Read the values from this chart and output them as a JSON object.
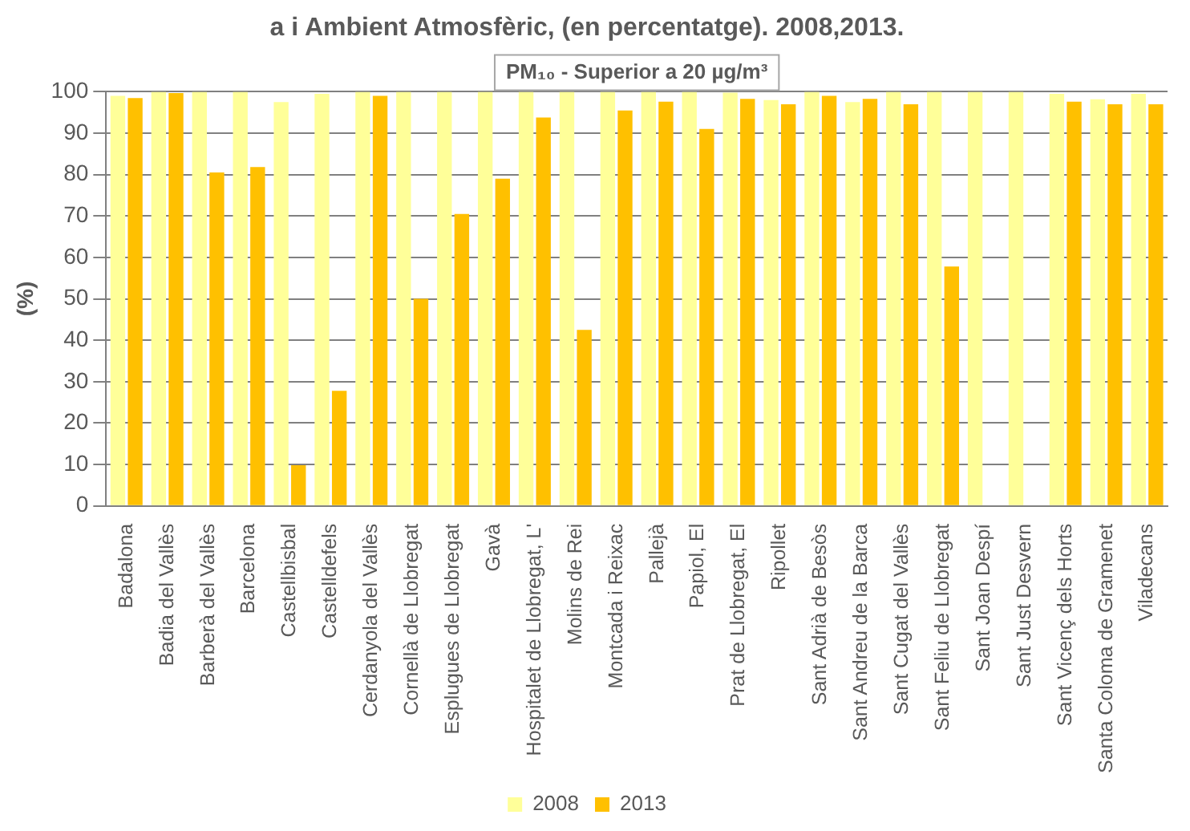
{
  "chart_data": {
    "type": "bar",
    "title": "a i Ambient Atmosfèric, (en percentatge). 2008,2013.",
    "subtitle": "PM₁₀ - Superior a 20 µg/m³",
    "ylabel": "(%)",
    "categories": [
      "Badalona",
      "Badia del Vallès",
      "Barberà del Vallès",
      "Barcelona",
      "Castellbisbal",
      "Castelldefels",
      "Cerdanyola del Vallès",
      "Cornellà de Llobregat",
      "Esplugues de Llobregat",
      "Gavà",
      "Hospitalet de Llobregat, L'",
      "Molins de Rei",
      "Montcada i Reixac",
      "Pallejà",
      "Papiol, El",
      "Prat de Llobregat, El",
      "Ripollet",
      "Sant Adrià de Besòs",
      "Sant Andreu de la Barca",
      "Sant Cugat del Vallès",
      "Sant Feliu de Llobregat",
      "Sant Joan Despí",
      "Sant Just Desvern",
      "Sant Vicenç dels Horts",
      "Santa Coloma de Gramenet",
      "Viladecans"
    ],
    "series": [
      {
        "name": "2008",
        "color": "#ffff99",
        "values": [
          99,
          100,
          100,
          100,
          97.5,
          99.5,
          100,
          100,
          100,
          100,
          100,
          100,
          100,
          100,
          100,
          99.8,
          98,
          100,
          97.5,
          100,
          100,
          100,
          100,
          99.5,
          98.2,
          99.5
        ]
      },
      {
        "name": "2013",
        "color": "#ffc000",
        "values": [
          98.5,
          99.7,
          80.5,
          81.8,
          9.8,
          27.8,
          99,
          50,
          70.5,
          79,
          93.8,
          42.5,
          95.5,
          97.6,
          91,
          98.3,
          97,
          99,
          98.3,
          97,
          57.8,
          null,
          null,
          97.6,
          97,
          97
        ]
      }
    ],
    "ylim": [
      0,
      100
    ],
    "yticks": [
      0,
      10,
      20,
      30,
      40,
      50,
      60,
      70,
      80,
      90,
      100
    ],
    "grid": "y",
    "legend": "bottom"
  }
}
